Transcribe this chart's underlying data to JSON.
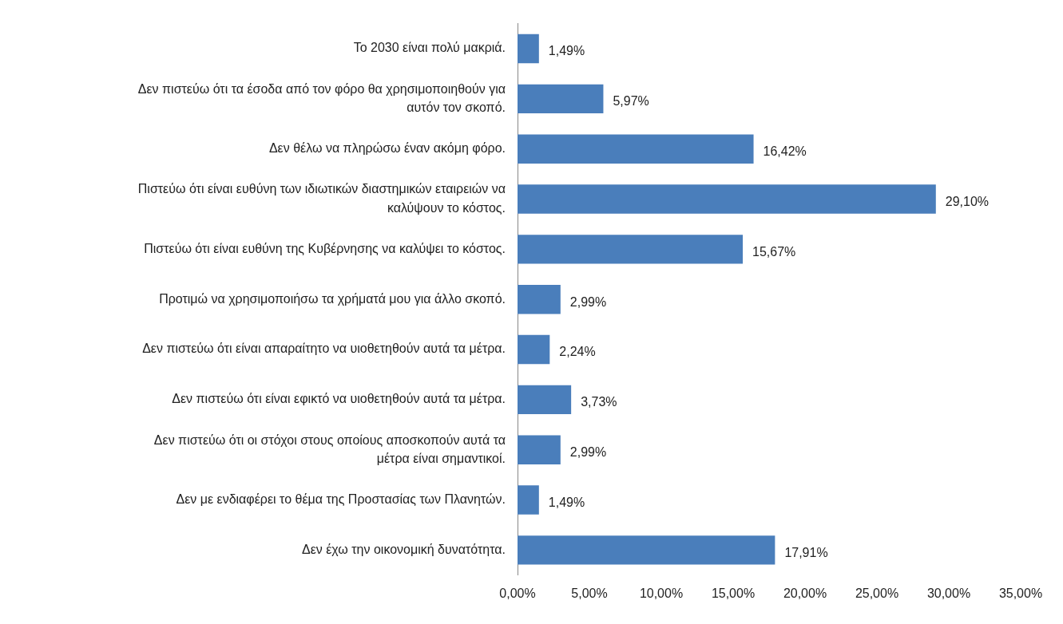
{
  "chart_data": {
    "type": "bar",
    "orientation": "horizontal",
    "categories": [
      "Το 2030 είναι πολύ μακριά.",
      "Δεν πιστεύω ότι τα έσοδα από τον φόρο θα χρησιμοποιηθούν για αυτόν τον σκοπό.",
      "Δεν θέλω να πληρώσω έναν ακόμη φόρο.",
      "Πιστεύω ότι είναι ευθύνη των ιδιωτικών διαστημικών εταιρειών να καλύψουν το κόστος.",
      "Πιστεύω ότι είναι ευθύνη της Κυβέρνησης να καλύψει το κόστος.",
      "Προτιμώ να χρησιμοποιήσω τα χρήματά μου για άλλο σκοπό.",
      "Δεν πιστεύω ότι είναι απαραίτητο να υιοθετηθούν αυτά τα μέτρα.",
      "Δεν πιστεύω ότι είναι εφικτό να υιοθετηθούν αυτά τα μέτρα.",
      "Δεν πιστεύω ότι οι στόχοι στους οποίους αποσκοπούν αυτά τα μέτρα είναι σημαντικοί.",
      "Δεν με ενδιαφέρει το θέμα της Προστασίας των Πλανητών.",
      "Δεν έχω την οικονομική δυνατότητα."
    ],
    "values": [
      1.49,
      5.97,
      16.42,
      29.1,
      15.67,
      2.99,
      2.24,
      3.73,
      2.99,
      1.49,
      17.91
    ],
    "value_labels": [
      "1,49%",
      "5,97%",
      "16,42%",
      "29,10%",
      "15,67%",
      "2,99%",
      "2,24%",
      "3,73%",
      "2,99%",
      "1,49%",
      "17,91%"
    ],
    "color": "#4a7ebb",
    "xlim": [
      0,
      35
    ],
    "xticks": [
      {
        "value": 0,
        "label": "0,00%"
      },
      {
        "value": 5,
        "label": "5,00%"
      },
      {
        "value": 10,
        "label": "10,00%"
      },
      {
        "value": 15,
        "label": "15,00%"
      },
      {
        "value": 20,
        "label": "20,00%"
      },
      {
        "value": 25,
        "label": "25,00%"
      },
      {
        "value": 30,
        "label": "30,00%"
      },
      {
        "value": 35,
        "label": "35,00%"
      }
    ],
    "grid": false,
    "legend": false
  }
}
